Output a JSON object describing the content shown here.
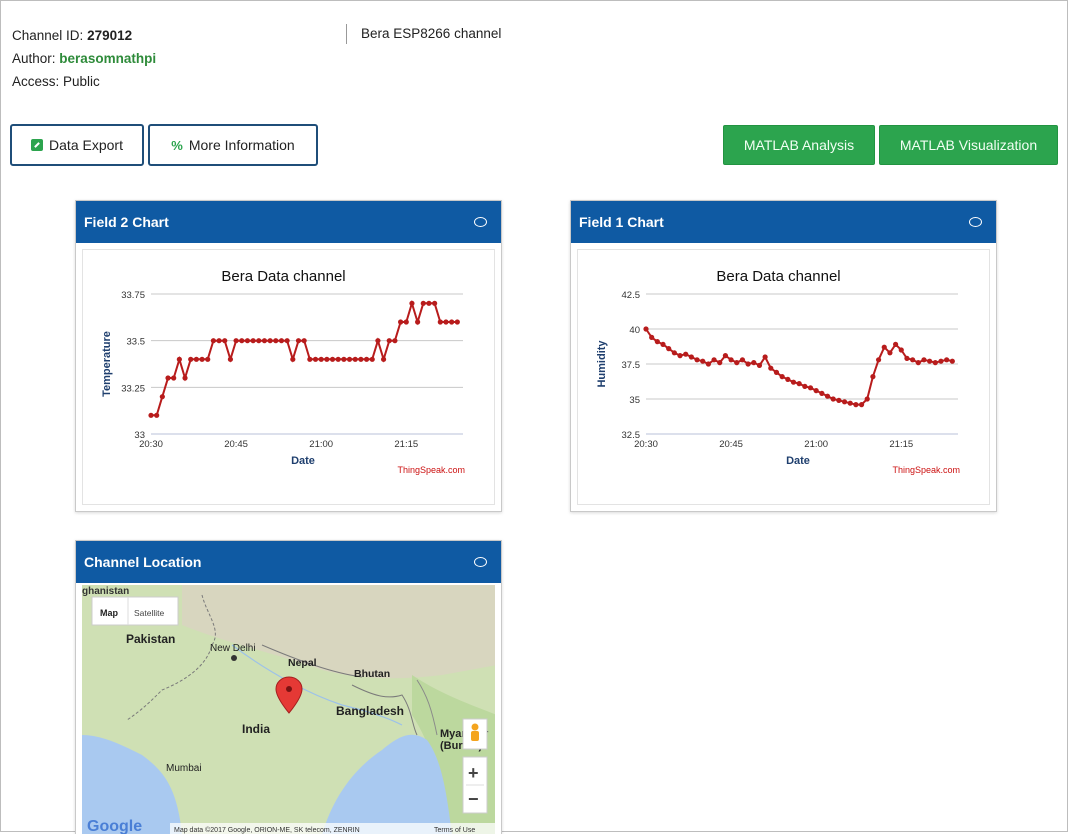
{
  "channel": {
    "id_label": "Channel ID:",
    "id_value": "279012",
    "author_label": "Author:",
    "author_value": "berasomnathpi",
    "access_label": "Access:",
    "access_value": "Public",
    "name": "Bera ESP8266 channel"
  },
  "buttons": {
    "data_export": "Data Export",
    "more_information": "More Information",
    "matlab_analysis": "MATLAB Analysis",
    "matlab_visualization": "MATLAB Visualization"
  },
  "colors": {
    "header": "#0f5aa3",
    "accent_green": "#2ca44e",
    "series": "#b81c1c"
  },
  "panels": {
    "field2": {
      "title": "Field 2 Chart"
    },
    "field1": {
      "title": "Field 1 Chart"
    },
    "location": {
      "title": "Channel Location"
    }
  },
  "chart_data": [
    {
      "type": "line",
      "title": "Bera Data channel",
      "xlabel": "Date",
      "ylabel": "Temperature",
      "credit": "ThingSpeak.com",
      "ylim": [
        33,
        33.75
      ],
      "yticks": [
        "33",
        "33.25",
        "33.5",
        "33.75"
      ],
      "xticks": [
        "20:30",
        "20:45",
        "21:00",
        "21:15"
      ],
      "xlim": [
        0,
        55
      ],
      "grid": true,
      "x": [
        0,
        1,
        2,
        3,
        4,
        5,
        6,
        7,
        8,
        9,
        10,
        11,
        12,
        13,
        14,
        15,
        16,
        17,
        18,
        19,
        20,
        21,
        22,
        23,
        24,
        25,
        26,
        27,
        28,
        29,
        30,
        31,
        32,
        33,
        34,
        35,
        36,
        37,
        38,
        39,
        40,
        41,
        42,
        43,
        44,
        45,
        46,
        47,
        48,
        49,
        50,
        51,
        52,
        53,
        54
      ],
      "y": [
        33.1,
        33.1,
        33.2,
        33.3,
        33.3,
        33.4,
        33.3,
        33.4,
        33.4,
        33.4,
        33.4,
        33.5,
        33.5,
        33.5,
        33.4,
        33.5,
        33.5,
        33.5,
        33.5,
        33.5,
        33.5,
        33.5,
        33.5,
        33.5,
        33.5,
        33.4,
        33.5,
        33.5,
        33.4,
        33.4,
        33.4,
        33.4,
        33.4,
        33.4,
        33.4,
        33.4,
        33.4,
        33.4,
        33.4,
        33.4,
        33.5,
        33.4,
        33.5,
        33.5,
        33.6,
        33.6,
        33.7,
        33.6,
        33.7,
        33.7,
        33.7,
        33.6,
        33.6,
        33.6,
        33.6
      ]
    },
    {
      "type": "line",
      "title": "Bera Data channel",
      "xlabel": "Date",
      "ylabel": "Humidity",
      "credit": "ThingSpeak.com",
      "ylim": [
        32.5,
        42.5
      ],
      "yticks": [
        "32.5",
        "35",
        "37.5",
        "40",
        "42.5"
      ],
      "xticks": [
        "20:30",
        "20:45",
        "21:00",
        "21:15"
      ],
      "xlim": [
        0,
        55
      ],
      "grid": true,
      "x": [
        0,
        1,
        2,
        3,
        4,
        5,
        6,
        7,
        8,
        9,
        10,
        11,
        12,
        13,
        14,
        15,
        16,
        17,
        18,
        19,
        20,
        21,
        22,
        23,
        24,
        25,
        26,
        27,
        28,
        29,
        30,
        31,
        32,
        33,
        34,
        35,
        36,
        37,
        38,
        39,
        40,
        41,
        42,
        43,
        44,
        45,
        46,
        47,
        48,
        49,
        50,
        51,
        52,
        53,
        54
      ],
      "y": [
        40.0,
        39.4,
        39.1,
        38.9,
        38.6,
        38.3,
        38.1,
        38.2,
        38.0,
        37.8,
        37.7,
        37.5,
        37.8,
        37.6,
        38.1,
        37.8,
        37.6,
        37.8,
        37.5,
        37.6,
        37.4,
        38.0,
        37.2,
        36.9,
        36.6,
        36.4,
        36.2,
        36.1,
        35.9,
        35.8,
        35.6,
        35.4,
        35.2,
        35.0,
        34.9,
        34.8,
        34.7,
        34.6,
        34.6,
        35.0,
        36.6,
        37.8,
        38.7,
        38.3,
        38.9,
        38.5,
        37.9,
        37.8,
        37.6,
        37.8,
        37.7,
        37.6,
        37.7,
        37.8,
        37.7
      ]
    }
  ],
  "map": {
    "type_map": "Map",
    "type_satellite": "Satellite",
    "labels": {
      "top": "ghanistan",
      "pakistan": "Pakistan",
      "new_delhi": "New Delhi",
      "nepal": "Nepal",
      "bhutan": "Bhutan",
      "india": "India",
      "bangladesh": "Bangladesh",
      "myanmar": "Myanmar\n(Burma)",
      "mumbai": "Mumbai"
    },
    "zoom_in": "+",
    "zoom_out": "−",
    "attribution": "Map data ©2017 Google, ORION-ME, SK telecom, ZENRIN",
    "terms": "Terms of Use",
    "google": "Google"
  }
}
